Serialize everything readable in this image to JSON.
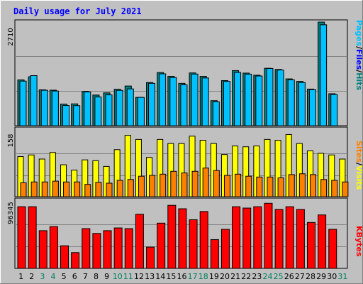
{
  "chart_data": [
    {
      "type": "bar",
      "title": "Daily usage for July 2021",
      "categories": [
        "1",
        "2",
        "3",
        "4",
        "5",
        "6",
        "7",
        "8",
        "9",
        "10",
        "11",
        "12",
        "13",
        "14",
        "15",
        "16",
        "17",
        "18",
        "19",
        "20",
        "21",
        "22",
        "23",
        "24",
        "25",
        "26",
        "27",
        "28",
        "29",
        "30",
        "31"
      ],
      "weekend_days": [
        "3",
        "4",
        "10",
        "11",
        "17",
        "18",
        "24",
        "25",
        "31"
      ],
      "y_max_label": "2710",
      "ylim": [
        0,
        2710
      ],
      "right_labels": [
        "Pages",
        "/",
        "Files",
        "/",
        "Hits"
      ],
      "series": [
        {
          "name": "Hits",
          "color": "#008080",
          "values": [
            1188,
            1270,
            930,
            922,
            560,
            566,
            890,
            795,
            852,
            945,
            1030,
            735,
            1120,
            1380,
            1280,
            1100,
            1370,
            1280,
            650,
            1170,
            1430,
            1365,
            1310,
            1490,
            1460,
            1215,
            1150,
            950,
            2690,
            830,
            0
          ]
        },
        {
          "name": "Files",
          "color": "#00c0ff",
          "values": [
            1158,
            1300,
            920,
            900,
            525,
            520,
            875,
            745,
            800,
            918,
            955,
            735,
            1100,
            1345,
            1250,
            1060,
            1340,
            1238,
            620,
            1150,
            1382,
            1338,
            1290,
            1485,
            1445,
            1190,
            1120,
            935,
            2620,
            810,
            0
          ]
        },
        {
          "name": "Pages",
          "color": "#00e0ff",
          "values": [
            0,
            0,
            0,
            0,
            0,
            0,
            0,
            0,
            0,
            0,
            0,
            0,
            0,
            0,
            0,
            0,
            0,
            0,
            0,
            0,
            0,
            0,
            0,
            0,
            0,
            0,
            0,
            0,
            0,
            0,
            0
          ]
        }
      ]
    },
    {
      "type": "bar",
      "y_max_label": "158",
      "ylim": [
        0,
        158
      ],
      "right_labels": [
        "Sites",
        "/",
        "Visits"
      ],
      "series": [
        {
          "name": "Visits",
          "color": "#ffff00",
          "values": [
            98,
            102,
            92,
            108,
            78,
            65,
            90,
            88,
            74,
            115,
            150,
            140,
            96,
            140,
            130,
            130,
            148,
            138,
            130,
            103,
            124,
            122,
            124,
            140,
            138,
            152,
            130,
            112,
            106,
            102,
            92
          ]
        },
        {
          "name": "Sites",
          "color": "#ff8000",
          "values": [
            34,
            36,
            36,
            38,
            36,
            36,
            30,
            35,
            33,
            40,
            42,
            50,
            52,
            55,
            62,
            58,
            62,
            70,
            64,
            52,
            55,
            50,
            48,
            48,
            46,
            54,
            56,
            54,
            42,
            40,
            36
          ]
        }
      ]
    },
    {
      "type": "bar",
      "y_max_label": "96345",
      "ylim": [
        0,
        96345
      ],
      "right_labels": [
        "KBytes"
      ],
      "series": [
        {
          "name": "KBytes",
          "color": "#ff0000",
          "values": [
            90000,
            90000,
            55000,
            61000,
            33000,
            23000,
            58000,
            51000,
            55000,
            59000,
            58000,
            79000,
            31000,
            66000,
            92000,
            87000,
            71000,
            83000,
            42000,
            57000,
            90000,
            88000,
            90000,
            95000,
            86000,
            90000,
            86000,
            67000,
            78000,
            57000,
            0
          ]
        }
      ]
    }
  ]
}
